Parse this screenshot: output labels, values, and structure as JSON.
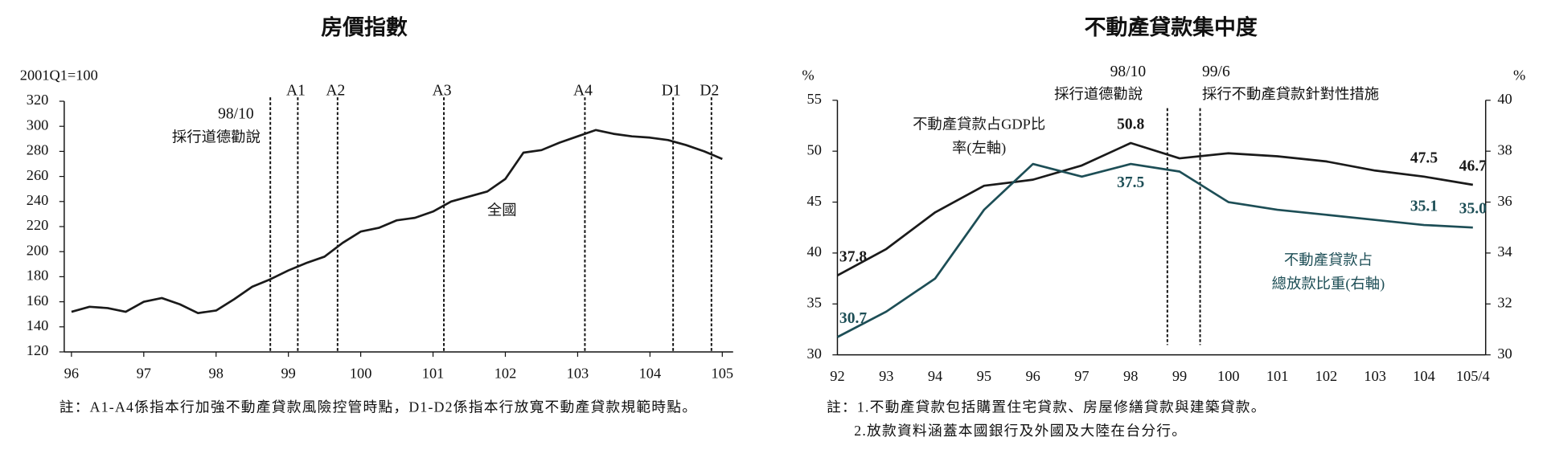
{
  "chart_data": [
    {
      "type": "line",
      "title": "房價指數",
      "y_label": "2001Q1=100",
      "x": [
        96,
        96.25,
        96.5,
        96.75,
        97,
        97.25,
        97.5,
        97.75,
        98,
        98.25,
        98.5,
        98.75,
        99,
        99.25,
        99.5,
        99.75,
        100,
        100.25,
        100.5,
        100.75,
        101,
        101.25,
        101.5,
        101.75,
        102,
        102.25,
        102.5,
        102.75,
        103,
        103.25,
        103.5,
        103.75,
        104,
        104.25,
        104.5,
        104.75,
        105
      ],
      "xlim": [
        95.9,
        105.15
      ],
      "xticks": [
        96,
        97,
        98,
        99,
        100,
        101,
        102,
        103,
        104,
        105
      ],
      "ylim": [
        120,
        320
      ],
      "yticks": [
        120,
        140,
        160,
        180,
        200,
        220,
        240,
        260,
        280,
        300,
        320
      ],
      "series": [
        {
          "name": "全國",
          "color": "#1a1a1a",
          "values": [
            152,
            156,
            155,
            152,
            160,
            163,
            158,
            151,
            153,
            162,
            172,
            178,
            185,
            191,
            196,
            207,
            216,
            219,
            225,
            227,
            232,
            240,
            244,
            248,
            258,
            279,
            281,
            287,
            292,
            297,
            294,
            292,
            291,
            289,
            285,
            280,
            274
          ]
        }
      ],
      "events": [
        {
          "label": "98/10",
          "text": "採行道德勸說",
          "x": 98.75
        },
        {
          "label": "A1",
          "x": 99.13
        },
        {
          "label": "A2",
          "x": 99.68
        },
        {
          "label": "A3",
          "x": 101.15
        },
        {
          "label": "A4",
          "x": 103.1
        },
        {
          "label": "D1",
          "x": 104.32
        },
        {
          "label": "D2",
          "x": 104.85
        }
      ],
      "notes": [
        "註：A1-A4係指本行加強不動產貸款風險控管時點，D1-D2係指本行放寬不動產貸款規範時點。"
      ]
    },
    {
      "type": "line",
      "title": "不動產貸款集中度",
      "y_label": "%",
      "y2_label": "%",
      "categories": [
        "92",
        "93",
        "94",
        "95",
        "96",
        "97",
        "98",
        "99",
        "100",
        "101",
        "102",
        "103",
        "104",
        "105/4"
      ],
      "ylim": [
        30,
        55
      ],
      "yticks": [
        30,
        35,
        40,
        45,
        50,
        55
      ],
      "y2lim": [
        30,
        40
      ],
      "y2ticks": [
        30,
        32,
        34,
        36,
        38,
        40
      ],
      "series": [
        {
          "name": "不動產貸款占GDP比率(左軸)",
          "color": "#1a1a1a",
          "values": [
            37.8,
            40.4,
            44.0,
            46.6,
            47.2,
            48.6,
            50.8,
            49.3,
            49.8,
            49.5,
            49.0,
            48.1,
            47.5,
            46.7
          ],
          "value_labels": [
            "37.8",
            null,
            null,
            null,
            null,
            null,
            "50.8",
            null,
            null,
            null,
            null,
            null,
            "47.5",
            "46.7"
          ]
        },
        {
          "name": "不動產貸款占總放款比重(右軸)",
          "color": "#1d4e56",
          "axis": "y2",
          "values": [
            30.7,
            31.7,
            33.0,
            35.7,
            37.5,
            37.0,
            37.5,
            37.2,
            36.0,
            35.7,
            35.5,
            35.3,
            35.1,
            35.0
          ],
          "value_labels": [
            "30.7",
            null,
            null,
            null,
            null,
            null,
            "37.5",
            null,
            null,
            null,
            null,
            null,
            "35.1",
            "35.0"
          ]
        }
      ],
      "events": [
        {
          "label": "98/10",
          "text": "採行道德勸說",
          "x": 98.75
        },
        {
          "label": "99/6",
          "text": "採行不動產貸款針對性措施",
          "x": 99.42
        }
      ],
      "notes": [
        "註：1.不動產貸款包括購置住宅貸款、房屋修繕貸款與建築貸款。",
        "2.放款資料涵蓋本國銀行及外國及大陸在台分行。"
      ]
    }
  ]
}
